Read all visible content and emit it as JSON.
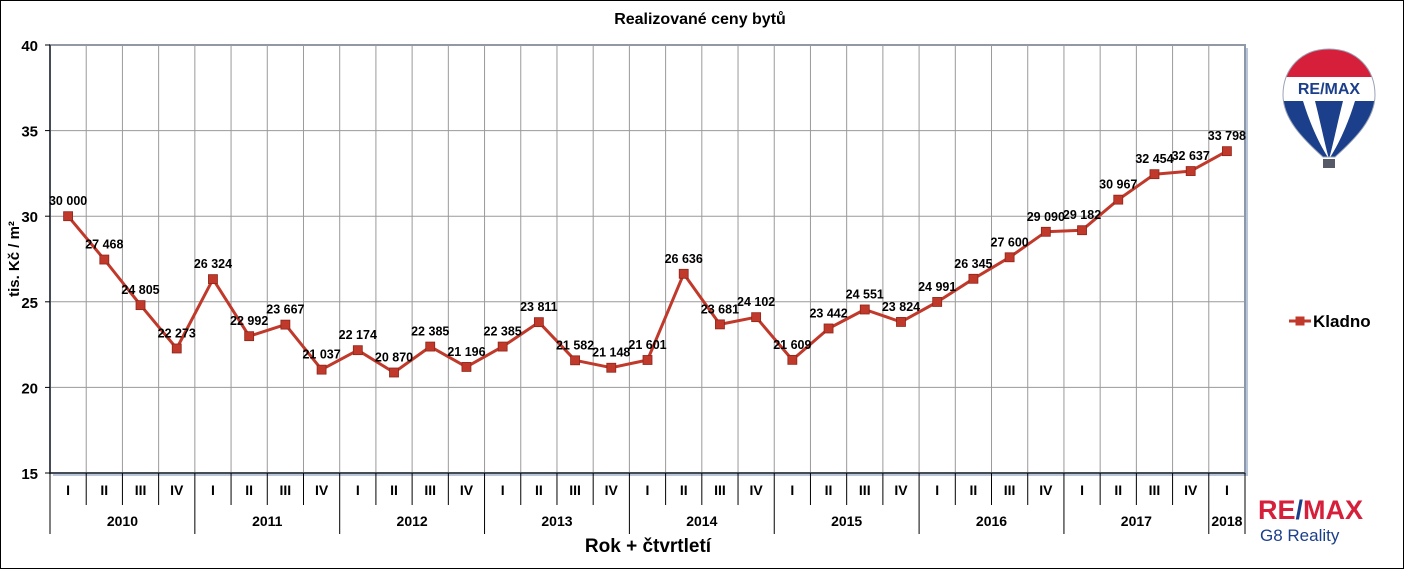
{
  "chart_data": {
    "type": "line",
    "title": "Realizované ceny bytů",
    "xlabel": "Rok + čtvrtletí",
    "ylabel": "tis. Kč / m²",
    "ylim": [
      15,
      40
    ],
    "yticks": [
      "15",
      "20",
      "25",
      "30",
      "35",
      "40"
    ],
    "grid": true,
    "legend_position": "right",
    "quarters": [
      "I",
      "II",
      "III",
      "IV",
      "I",
      "II",
      "III",
      "IV",
      "I",
      "II",
      "III",
      "IV",
      "I",
      "II",
      "III",
      "IV",
      "I",
      "II",
      "III",
      "IV",
      "I",
      "II",
      "III",
      "IV",
      "I",
      "II",
      "III",
      "IV",
      "I",
      "II",
      "III",
      "IV",
      "I"
    ],
    "years": [
      {
        "label": "2010",
        "count": 4
      },
      {
        "label": "2011",
        "count": 4
      },
      {
        "label": "2012",
        "count": 4
      },
      {
        "label": "2013",
        "count": 4
      },
      {
        "label": "2014",
        "count": 4
      },
      {
        "label": "2015",
        "count": 4
      },
      {
        "label": "2016",
        "count": 4
      },
      {
        "label": "2017",
        "count": 4
      },
      {
        "label": "2018",
        "count": 1
      }
    ],
    "series": [
      {
        "name": "Kladno",
        "color": "#c0392b",
        "values": [
          30.0,
          27.468,
          24.805,
          22.273,
          26.324,
          22.992,
          23.667,
          21.037,
          22.174,
          20.87,
          22.385,
          21.196,
          22.385,
          23.811,
          21.582,
          21.148,
          21.601,
          26.636,
          23.681,
          24.102,
          21.609,
          23.442,
          24.551,
          23.824,
          24.991,
          26.345,
          27.6,
          29.09,
          29.182,
          30.967,
          32.454,
          32.637,
          33.798
        ],
        "labels": [
          "30 000",
          "27 468",
          "24 805",
          "22 273",
          "26 324",
          "22 992",
          "23 667",
          "21 037",
          "22 174",
          "20 870",
          "22 385",
          "21 196",
          "22 385",
          "23 811",
          "21 582",
          "21 148",
          "21 601",
          "26 636",
          "23 681",
          "24 102",
          "21 609",
          "23 442",
          "24 551",
          "23 824",
          "24 991",
          "26 345",
          "27 600",
          "29 090",
          "29 182",
          "30 967",
          "32 454",
          "32 637",
          "33 798"
        ]
      }
    ]
  },
  "branding": {
    "balloon_text": "RE/MAX",
    "logo_re": "RE",
    "logo_slash": "/",
    "logo_max": "MAX",
    "logo_sub": "G8 Reality",
    "brand_red": "#d61f3a",
    "brand_blue": "#1b3f8b"
  }
}
